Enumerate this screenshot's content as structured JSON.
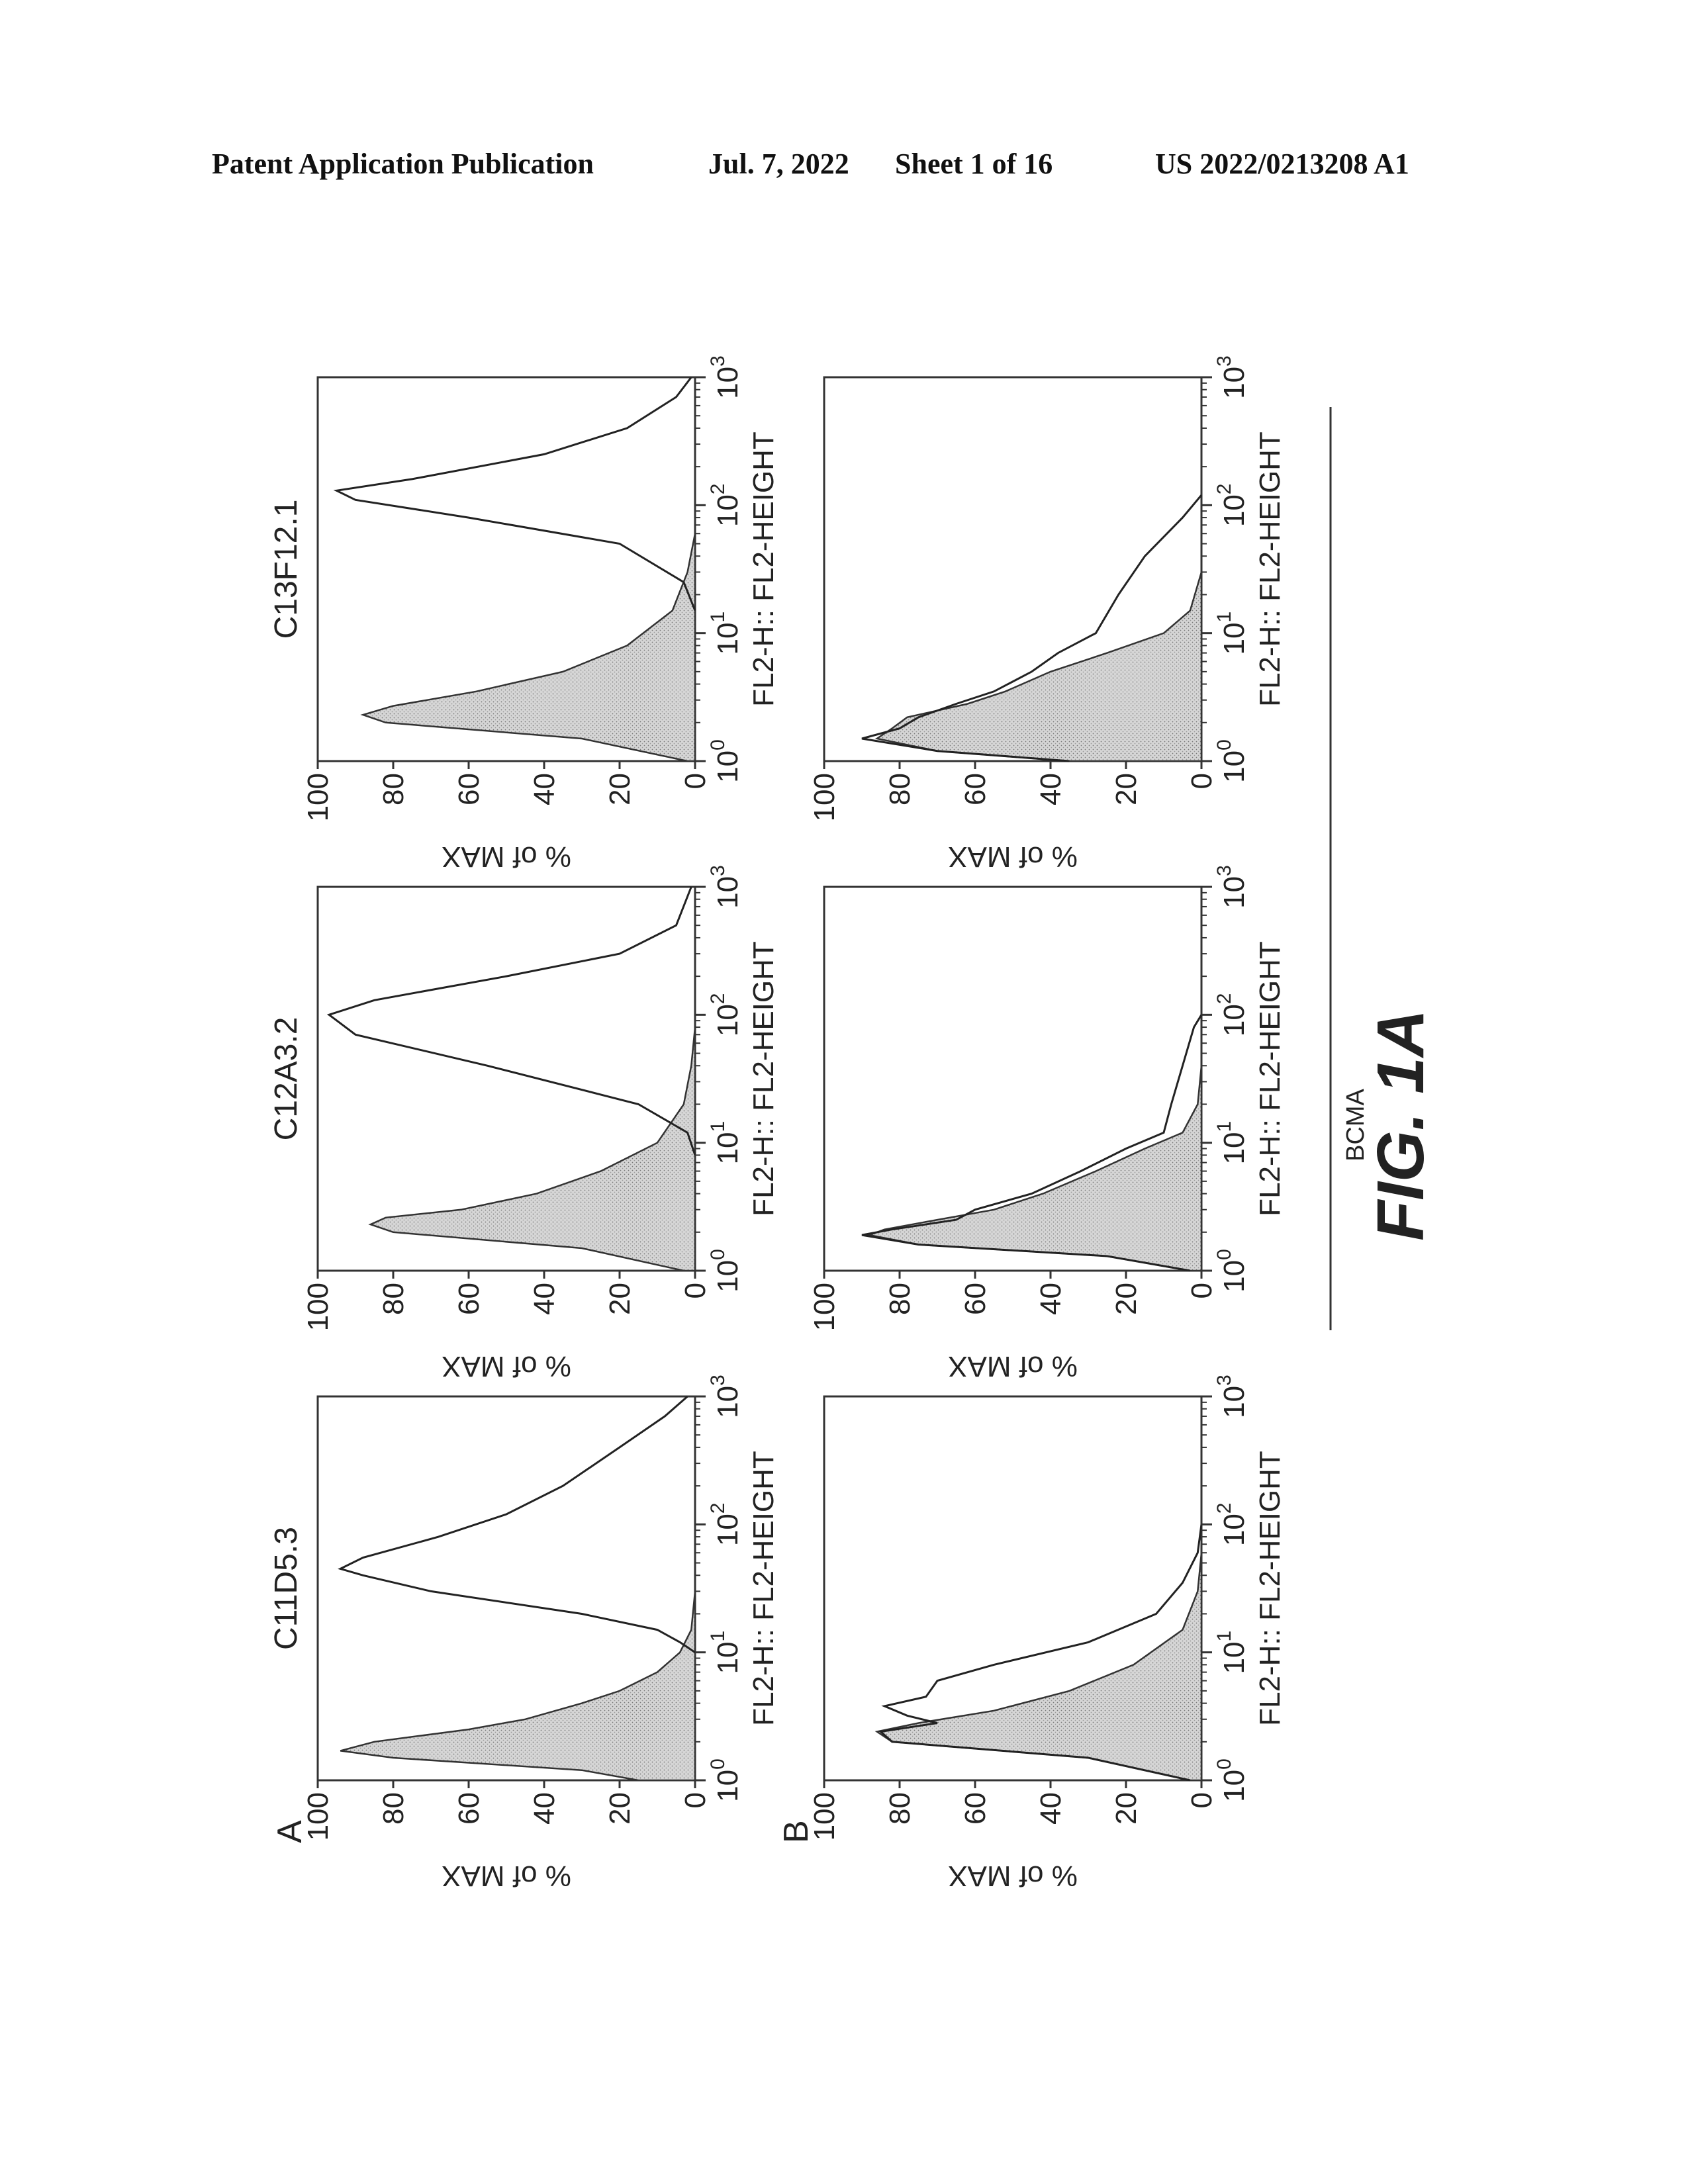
{
  "header": {
    "publication": "Patent Application Publication",
    "date": "Jul. 7, 2022",
    "sheet": "Sheet 1 of 16",
    "number": "US 2022/0213208 A1"
  },
  "figure": {
    "label": "FIG. 1A",
    "group_caption": "BCMA",
    "row_labels": [
      "A",
      "B"
    ]
  },
  "chart_data": [
    {
      "type": "area",
      "row": "A",
      "title": "C11D5.3",
      "xlabel": "FL2-H:: FL2-HEIGHT",
      "ylabel": "% of MAX",
      "x_scale": "log",
      "xlim": [
        1,
        1000
      ],
      "ylim": [
        0,
        100
      ],
      "x_ticks": [
        "10^0",
        "10^1",
        "10^2",
        "10^3"
      ],
      "y_ticks": [
        "0",
        "20",
        "40",
        "60",
        "80",
        "100"
      ],
      "series": [
        {
          "style": "filled",
          "points": [
            [
              1,
              15
            ],
            [
              1.2,
              30
            ],
            [
              1.5,
              80
            ],
            [
              1.7,
              94
            ],
            [
              2,
              85
            ],
            [
              2.5,
              60
            ],
            [
              3,
              45
            ],
            [
              4,
              30
            ],
            [
              5,
              20
            ],
            [
              7,
              10
            ],
            [
              10,
              4
            ],
            [
              15,
              1
            ],
            [
              30,
              0
            ]
          ]
        },
        {
          "style": "outline",
          "points": [
            [
              10,
              0
            ],
            [
              12,
              4
            ],
            [
              15,
              10
            ],
            [
              20,
              30
            ],
            [
              30,
              70
            ],
            [
              40,
              88
            ],
            [
              45,
              94
            ],
            [
              55,
              88
            ],
            [
              80,
              68
            ],
            [
              120,
              50
            ],
            [
              200,
              35
            ],
            [
              400,
              20
            ],
            [
              700,
              8
            ],
            [
              1000,
              2
            ]
          ]
        }
      ]
    },
    {
      "type": "area",
      "row": "A",
      "title": "C12A3.2",
      "xlabel": "FL2-H:: FL2-HEIGHT",
      "ylabel": "% of MAX",
      "x_scale": "log",
      "xlim": [
        1,
        1000
      ],
      "ylim": [
        0,
        100
      ],
      "x_ticks": [
        "10^0",
        "10^1",
        "10^2",
        "10^3"
      ],
      "y_ticks": [
        "0",
        "20",
        "40",
        "60",
        "80",
        "100"
      ],
      "series": [
        {
          "style": "filled",
          "points": [
            [
              1,
              3
            ],
            [
              1.5,
              30
            ],
            [
              2,
              80
            ],
            [
              2.3,
              86
            ],
            [
              2.6,
              82
            ],
            [
              3,
              62
            ],
            [
              4,
              42
            ],
            [
              6,
              25
            ],
            [
              10,
              10
            ],
            [
              20,
              3
            ],
            [
              40,
              1
            ],
            [
              80,
              0
            ]
          ]
        },
        {
          "style": "outline",
          "points": [
            [
              8,
              0
            ],
            [
              12,
              2
            ],
            [
              20,
              15
            ],
            [
              40,
              55
            ],
            [
              70,
              90
            ],
            [
              100,
              97
            ],
            [
              130,
              85
            ],
            [
              200,
              50
            ],
            [
              300,
              20
            ],
            [
              500,
              5
            ],
            [
              1000,
              1
            ]
          ]
        }
      ]
    },
    {
      "type": "area",
      "row": "A",
      "title": "C13F12.1",
      "xlabel": "FL2-H:: FL2-HEIGHT",
      "ylabel": "% of MAX",
      "x_scale": "log",
      "xlim": [
        1,
        1000
      ],
      "ylim": [
        0,
        100
      ],
      "x_ticks": [
        "10^0",
        "10^1",
        "10^2",
        "10^3"
      ],
      "y_ticks": [
        "0",
        "20",
        "40",
        "60",
        "80",
        "100"
      ],
      "series": [
        {
          "style": "filled",
          "points": [
            [
              1,
              2
            ],
            [
              1.5,
              30
            ],
            [
              2,
              82
            ],
            [
              2.3,
              88
            ],
            [
              2.7,
              80
            ],
            [
              3.5,
              58
            ],
            [
              5,
              35
            ],
            [
              8,
              18
            ],
            [
              15,
              6
            ],
            [
              30,
              2
            ],
            [
              60,
              0
            ]
          ]
        },
        {
          "style": "outline",
          "points": [
            [
              15,
              0
            ],
            [
              25,
              3
            ],
            [
              50,
              20
            ],
            [
              80,
              60
            ],
            [
              110,
              90
            ],
            [
              130,
              95
            ],
            [
              160,
              75
            ],
            [
              250,
              40
            ],
            [
              400,
              18
            ],
            [
              700,
              5
            ],
            [
              1000,
              1
            ]
          ]
        }
      ]
    },
    {
      "type": "area",
      "row": "B",
      "title": "",
      "xlabel": "FL2-H:: FL2-HEIGHT",
      "ylabel": "% of MAX",
      "x_scale": "log",
      "xlim": [
        1,
        1000
      ],
      "ylim": [
        0,
        100
      ],
      "x_ticks": [
        "10^0",
        "10^1",
        "10^2",
        "10^3"
      ],
      "y_ticks": [
        "0",
        "20",
        "40",
        "60",
        "80",
        "100"
      ],
      "series": [
        {
          "style": "filled",
          "points": [
            [
              1,
              3
            ],
            [
              1.5,
              30
            ],
            [
              2,
              82
            ],
            [
              2.4,
              86
            ],
            [
              2.8,
              75
            ],
            [
              3.5,
              55
            ],
            [
              5,
              35
            ],
            [
              8,
              18
            ],
            [
              15,
              5
            ],
            [
              30,
              1
            ],
            [
              60,
              0
            ]
          ]
        },
        {
          "style": "outline",
          "points": [
            [
              1,
              3
            ],
            [
              1.5,
              30
            ],
            [
              2,
              82
            ],
            [
              2.4,
              85
            ],
            [
              2.8,
              70
            ],
            [
              3.2,
              78
            ],
            [
              3.8,
              84
            ],
            [
              4.5,
              73
            ],
            [
              6,
              70
            ],
            [
              8,
              55
            ],
            [
              12,
              30
            ],
            [
              20,
              12
            ],
            [
              35,
              5
            ],
            [
              60,
              1
            ],
            [
              100,
              0
            ]
          ]
        }
      ]
    },
    {
      "type": "area",
      "row": "B",
      "title": "",
      "xlabel": "FL2-H:: FL2-HEIGHT",
      "ylabel": "% of MAX",
      "x_scale": "log",
      "xlim": [
        1,
        1000
      ],
      "ylim": [
        0,
        100
      ],
      "x_ticks": [
        "10^0",
        "10^1",
        "10^2",
        "10^3"
      ],
      "y_ticks": [
        "0",
        "20",
        "40",
        "60",
        "80",
        "100"
      ],
      "series": [
        {
          "style": "filled",
          "points": [
            [
              1,
              3
            ],
            [
              1.3,
              25
            ],
            [
              1.6,
              75
            ],
            [
              1.9,
              88
            ],
            [
              2.1,
              84
            ],
            [
              2.5,
              70
            ],
            [
              3,
              55
            ],
            [
              4,
              42
            ],
            [
              6,
              28
            ],
            [
              9,
              15
            ],
            [
              12,
              5
            ],
            [
              20,
              1
            ],
            [
              40,
              0
            ]
          ]
        },
        {
          "style": "outline",
          "points": [
            [
              1,
              3
            ],
            [
              1.3,
              25
            ],
            [
              1.6,
              75
            ],
            [
              1.9,
              90
            ],
            [
              2.1,
              82
            ],
            [
              2.5,
              65
            ],
            [
              3,
              60
            ],
            [
              4,
              45
            ],
            [
              6,
              32
            ],
            [
              9,
              20
            ],
            [
              12,
              10
            ],
            [
              20,
              8
            ],
            [
              40,
              5
            ],
            [
              80,
              2
            ],
            [
              100,
              0
            ]
          ]
        }
      ]
    },
    {
      "type": "area",
      "row": "B",
      "title": "",
      "xlabel": "FL2-H:: FL2-HEIGHT",
      "ylabel": "% of MAX",
      "x_scale": "log",
      "xlim": [
        1,
        1000
      ],
      "ylim": [
        0,
        100
      ],
      "x_ticks": [
        "10^0",
        "10^1",
        "10^2",
        "10^3"
      ],
      "y_ticks": [
        "0",
        "20",
        "40",
        "60",
        "80",
        "100"
      ],
      "series": [
        {
          "style": "filled",
          "points": [
            [
              1,
              35
            ],
            [
              1.2,
              70
            ],
            [
              1.5,
              86
            ],
            [
              1.8,
              82
            ],
            [
              2.2,
              78
            ],
            [
              2.8,
              62
            ],
            [
              3.5,
              52
            ],
            [
              5,
              40
            ],
            [
              7,
              25
            ],
            [
              10,
              10
            ],
            [
              15,
              3
            ],
            [
              30,
              0
            ]
          ]
        },
        {
          "style": "outline",
          "points": [
            [
              1,
              35
            ],
            [
              1.2,
              70
            ],
            [
              1.5,
              90
            ],
            [
              1.8,
              80
            ],
            [
              2.2,
              75
            ],
            [
              2.8,
              65
            ],
            [
              3.5,
              55
            ],
            [
              5,
              45
            ],
            [
              7,
              38
            ],
            [
              10,
              28
            ],
            [
              20,
              22
            ],
            [
              40,
              15
            ],
            [
              80,
              5
            ],
            [
              120,
              0
            ]
          ]
        }
      ]
    }
  ]
}
